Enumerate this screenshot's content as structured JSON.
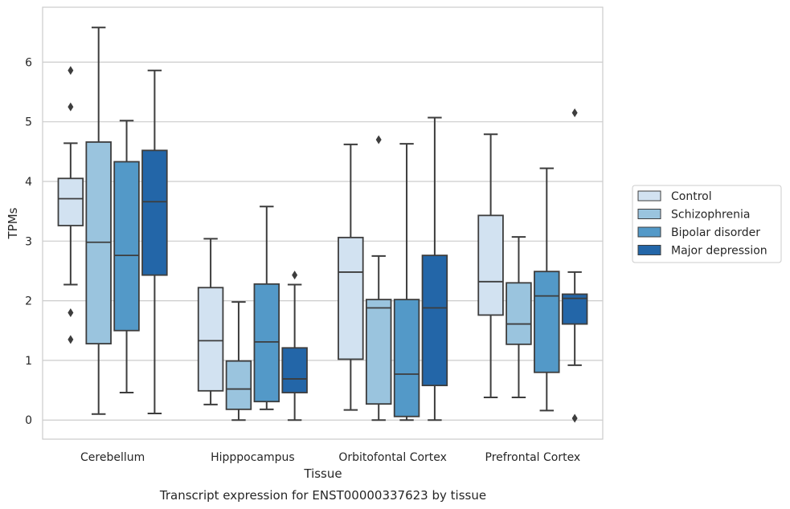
{
  "caption": "Transcript expression for ENST00000337623 by tissue",
  "chart_data": {
    "type": "box",
    "xlabel": "Tissue",
    "ylabel": "TPMs",
    "ylim": [
      -0.32,
      6.92
    ],
    "yticks": [
      0,
      1,
      2,
      3,
      4,
      5,
      6
    ],
    "grid": "horizontal",
    "legend_position": "right",
    "categories": [
      "Cerebellum",
      "Hipppocampus",
      "Orbitofontal Cortex",
      "Prefrontal Cortex"
    ],
    "series": [
      {
        "name": "Control",
        "color": "#d2e2f1",
        "boxes": [
          {
            "whislo": 2.27,
            "q1": 3.26,
            "med": 3.71,
            "q3": 4.05,
            "whishi": 4.64,
            "fliers": [
              5.86,
              5.25,
              1.8,
              1.35
            ]
          },
          {
            "whislo": 0.26,
            "q1": 0.49,
            "med": 1.33,
            "q3": 2.22,
            "whishi": 3.04,
            "fliers": []
          },
          {
            "whislo": 0.17,
            "q1": 1.02,
            "med": 2.48,
            "q3": 3.06,
            "whishi": 4.62,
            "fliers": []
          },
          {
            "whislo": 0.38,
            "q1": 1.76,
            "med": 2.32,
            "q3": 3.43,
            "whishi": 4.79,
            "fliers": []
          }
        ]
      },
      {
        "name": "Schizophrenia",
        "color": "#9ac4de",
        "boxes": [
          {
            "whislo": 0.1,
            "q1": 1.28,
            "med": 2.98,
            "q3": 4.66,
            "whishi": 6.58,
            "fliers": []
          },
          {
            "whislo": 0.0,
            "q1": 0.18,
            "med": 0.52,
            "q3": 0.99,
            "whishi": 1.98,
            "fliers": []
          },
          {
            "whislo": 0.0,
            "q1": 0.27,
            "med": 1.88,
            "q3": 2.02,
            "whishi": 2.75,
            "fliers": [
              4.7
            ]
          },
          {
            "whislo": 0.38,
            "q1": 1.27,
            "med": 1.61,
            "q3": 2.3,
            "whishi": 3.07,
            "fliers": []
          }
        ]
      },
      {
        "name": "Bipolar disorder",
        "color": "#5399c8",
        "boxes": [
          {
            "whislo": 0.46,
            "q1": 1.5,
            "med": 2.76,
            "q3": 4.33,
            "whishi": 5.02,
            "fliers": []
          },
          {
            "whislo": 0.18,
            "q1": 0.31,
            "med": 1.31,
            "q3": 2.28,
            "whishi": 3.58,
            "fliers": []
          },
          {
            "whislo": 0.0,
            "q1": 0.06,
            "med": 0.77,
            "q3": 2.02,
            "whishi": 4.63,
            "fliers": []
          },
          {
            "whislo": 0.16,
            "q1": 0.8,
            "med": 2.08,
            "q3": 2.49,
            "whishi": 4.22,
            "fliers": []
          }
        ]
      },
      {
        "name": "Major depression",
        "color": "#2366a8",
        "boxes": [
          {
            "whislo": 0.11,
            "q1": 2.43,
            "med": 3.66,
            "q3": 4.52,
            "whishi": 5.86,
            "fliers": []
          },
          {
            "whislo": 0.0,
            "q1": 0.46,
            "med": 0.69,
            "q3": 1.21,
            "whishi": 2.27,
            "fliers": [
              2.43
            ]
          },
          {
            "whislo": 0.0,
            "q1": 0.58,
            "med": 1.88,
            "q3": 2.76,
            "whishi": 5.07,
            "fliers": []
          },
          {
            "whislo": 0.92,
            "q1": 1.61,
            "med": 2.04,
            "q3": 2.11,
            "whishi": 2.48,
            "fliers": [
              5.15,
              0.03
            ]
          }
        ]
      }
    ]
  }
}
